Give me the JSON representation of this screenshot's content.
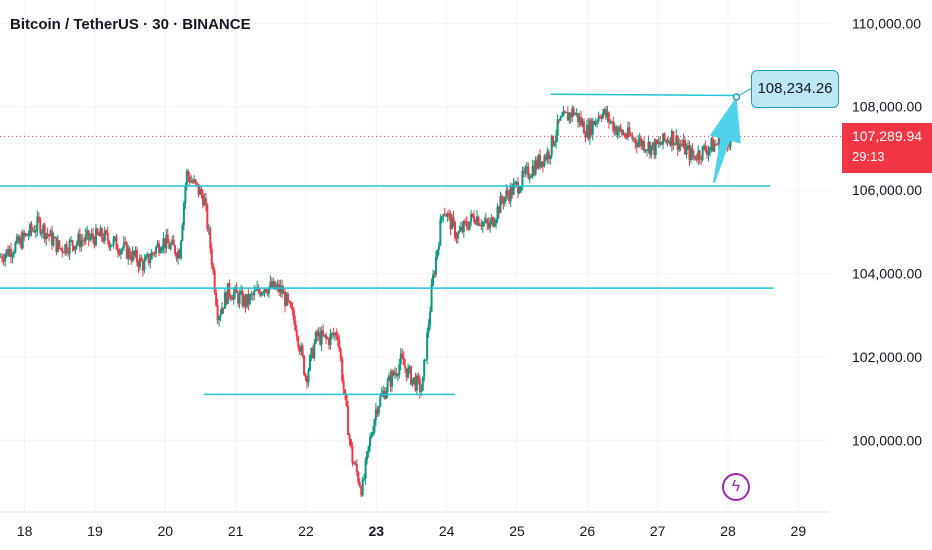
{
  "header": {
    "title": "Bitcoin / TetherUS · 30 · BINANCE"
  },
  "price_tag": {
    "price": "107,289.94",
    "countdown": "29:13",
    "color": "#f23645"
  },
  "callout": {
    "label": "108,234.26",
    "value": 108234.26
  },
  "colors": {
    "up": "#089981",
    "down": "#f23645",
    "line": "#22c3d6",
    "arrow": "#4fd3ea"
  },
  "icons": {
    "bolt": "lightning-bolt-icon"
  },
  "chart_data": {
    "type": "candlestick",
    "title": "Bitcoin / TetherUS · 30 · BINANCE",
    "x_ticks": [
      {
        "label": "18",
        "x": 18
      },
      {
        "label": "19",
        "x": 19
      },
      {
        "label": "20",
        "x": 20
      },
      {
        "label": "21",
        "x": 21
      },
      {
        "label": "22",
        "x": 22
      },
      {
        "label": "23",
        "x": 23,
        "bold": true
      },
      {
        "label": "24",
        "x": 24
      },
      {
        "label": "25",
        "x": 25
      },
      {
        "label": "26",
        "x": 26
      },
      {
        "label": "27",
        "x": 27
      },
      {
        "label": "28",
        "x": 28
      },
      {
        "label": "29",
        "x": 29
      }
    ],
    "y_ticks": [
      {
        "label": "110,000.00",
        "v": 110000
      },
      {
        "label": "108,000.00",
        "v": 108000
      },
      {
        "label": "106,000.00",
        "v": 106000
      },
      {
        "label": "104,000.00",
        "v": 104000
      },
      {
        "label": "102,000.00",
        "v": 102000
      },
      {
        "label": "100,000.00",
        "v": 100000
      }
    ],
    "xlim": [
      17.65,
      29.45
    ],
    "ylim": [
      98280,
      110560
    ],
    "current_price": 107289.94,
    "anchors": [
      [
        17.65,
        104400
      ],
      [
        17.9,
        104700
      ],
      [
        18.2,
        105200
      ],
      [
        18.5,
        104600
      ],
      [
        18.8,
        104800
      ],
      [
        19.1,
        104900
      ],
      [
        19.4,
        104600
      ],
      [
        19.7,
        104200
      ],
      [
        19.95,
        104800
      ],
      [
        20.2,
        104500
      ],
      [
        20.3,
        106400
      ],
      [
        20.55,
        105800
      ],
      [
        20.65,
        104500
      ],
      [
        20.75,
        103000
      ],
      [
        20.9,
        103600
      ],
      [
        21.15,
        103300
      ],
      [
        21.4,
        103700
      ],
      [
        21.65,
        103600
      ],
      [
        21.85,
        102800
      ],
      [
        22.0,
        101500
      ],
      [
        22.15,
        102500
      ],
      [
        22.3,
        102400
      ],
      [
        22.45,
        102600
      ],
      [
        22.55,
        101000
      ],
      [
        22.65,
        99600
      ],
      [
        22.8,
        98800
      ],
      [
        22.9,
        99900
      ],
      [
        23.0,
        100800
      ],
      [
        23.15,
        101300
      ],
      [
        23.35,
        101900
      ],
      [
        23.5,
        101500
      ],
      [
        23.65,
        101200
      ],
      [
        23.8,
        103800
      ],
      [
        23.95,
        105600
      ],
      [
        24.15,
        104900
      ],
      [
        24.4,
        105400
      ],
      [
        24.6,
        105100
      ],
      [
        24.8,
        105800
      ],
      [
        25.0,
        106100
      ],
      [
        25.2,
        106500
      ],
      [
        25.45,
        106900
      ],
      [
        25.6,
        107600
      ],
      [
        25.8,
        107900
      ],
      [
        26.0,
        107400
      ],
      [
        26.2,
        107900
      ],
      [
        26.45,
        107400
      ],
      [
        26.7,
        107200
      ],
      [
        26.95,
        107000
      ],
      [
        27.2,
        107300
      ],
      [
        27.5,
        106800
      ],
      [
        27.7,
        107000
      ],
      [
        27.95,
        107200
      ],
      [
        28.1,
        107290
      ]
    ],
    "lines": [
      {
        "x1": 17.65,
        "x2": 28.6,
        "y1": 106100,
        "y2": 106100
      },
      {
        "x1": 17.65,
        "x2": 28.65,
        "y1": 103650,
        "y2": 103650
      },
      {
        "x1": 20.55,
        "x2": 24.12,
        "y1": 101100,
        "y2": 101100
      },
      {
        "x1": 25.48,
        "x2": 28.12,
        "y1": 108300,
        "y2": 108270
      }
    ],
    "arrow": {
      "x1": 27.8,
      "y1": 106180,
      "x2": 28.12,
      "y2": 108234.26
    }
  }
}
